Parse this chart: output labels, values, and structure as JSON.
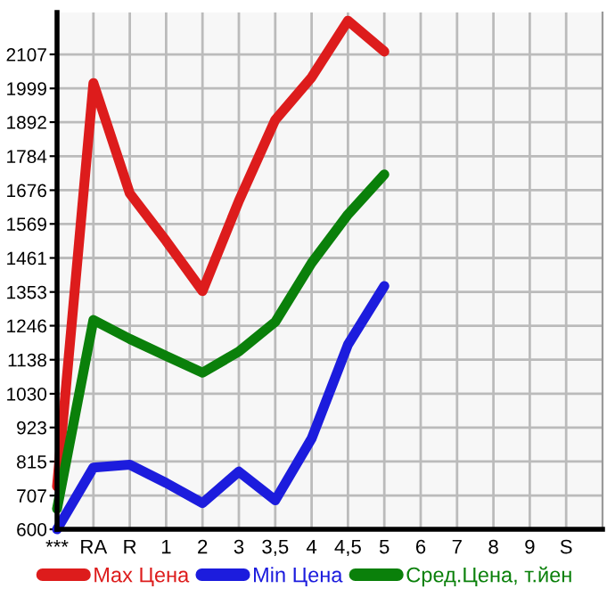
{
  "chart_data": {
    "type": "line",
    "categories": [
      "***",
      "RA",
      "R",
      "1",
      "2",
      "3",
      "3,5",
      "4",
      "4,5",
      "5",
      "6",
      "7",
      "8",
      "9",
      "S"
    ],
    "series": [
      {
        "name": "Max Цена",
        "color": "#dd1c1c",
        "values": [
          736,
          2016,
          1666,
          1515,
          1356,
          1642,
          1899,
          2034,
          2214,
          2116,
          null,
          null,
          null,
          null,
          null
        ]
      },
      {
        "name": "Min Цена",
        "color": "#1c1cdd",
        "values": [
          600,
          796,
          805,
          747,
          683,
          783,
          692,
          888,
          1186,
          1372,
          null,
          null,
          null,
          null,
          null
        ]
      },
      {
        "name": "Сред.Цена, т.йен",
        "color": "#0a800a",
        "values": [
          665,
          1264,
          1204,
          1150,
          1097,
          1164,
          1258,
          1445,
          1599,
          1726,
          null,
          null,
          null,
          null,
          null
        ]
      }
    ],
    "ylim": [
      600,
      2240
    ],
    "yticks": [
      600,
      707,
      815,
      923,
      1030,
      1138,
      1246,
      1353,
      1461,
      1569,
      1676,
      1784,
      1892,
      1999,
      2107
    ],
    "grid": true,
    "legend": "bottom",
    "marker": "none",
    "line_style": "solid"
  }
}
